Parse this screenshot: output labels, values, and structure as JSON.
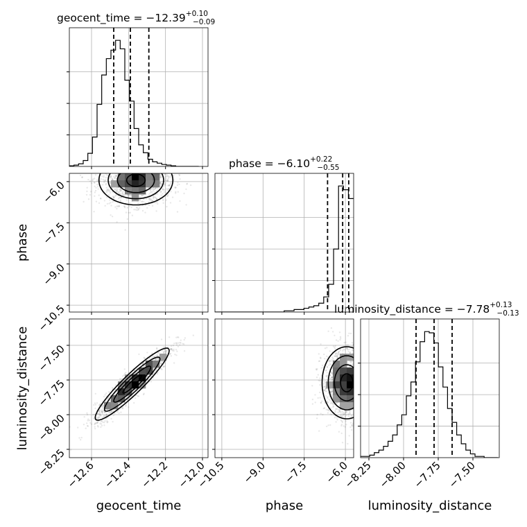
{
  "chart_data": {
    "type": "corner",
    "parameters": [
      "geocent_time",
      "phase",
      "luminosity_distance"
    ],
    "grid": true,
    "titles": [
      {
        "parameter": "geocent_time",
        "prefix": "geocent_time = −12.39",
        "plus": "+0.10",
        "minus": "−0.09",
        "median": -12.39,
        "err_plus": 0.1,
        "err_minus": 0.09
      },
      {
        "parameter": "phase",
        "prefix": "phase = −6.10",
        "plus": "+0.22",
        "minus": "−0.55",
        "median": -6.1,
        "err_plus": 0.22,
        "err_minus": 0.55
      },
      {
        "parameter": "luminosity_distance",
        "prefix": "luminosity_distance = −7.78",
        "plus": "+0.13",
        "minus": "−0.13",
        "median": -7.78,
        "err_plus": 0.13,
        "err_minus": 0.13
      }
    ],
    "ranges": {
      "geocent_time": [
        -12.72,
        -11.97
      ],
      "phase": [
        -10.75,
        -5.7
      ],
      "luminosity_distance": [
        -8.31,
        -7.31
      ]
    },
    "ticks": {
      "geocent_time": {
        "values": [
          -12.6,
          -12.4,
          -12.2,
          -12.0
        ],
        "labels": [
          "−12.6",
          "−12.4",
          "−12.2",
          "−12.0"
        ]
      },
      "phase": {
        "values": [
          -10.5,
          -9.0,
          -7.5,
          -6.0
        ],
        "labels": [
          "−10.5",
          "−9.0",
          "−7.5",
          "−6.0"
        ]
      },
      "luminosity_distance": {
        "values": [
          -8.25,
          -8.0,
          -7.75,
          -7.5
        ],
        "labels": [
          "−8.25",
          "−8.00",
          "−7.75",
          "−7.50"
        ]
      }
    },
    "quantile_lines": {
      "geocent_time": [
        -12.48,
        -12.39,
        -12.29
      ],
      "phase": [
        -6.65,
        -6.1,
        -5.88
      ],
      "luminosity_distance": [
        -7.91,
        -7.78,
        -7.65
      ]
    },
    "histograms": {
      "geocent_time": {
        "bin_edges": [
          -12.72,
          -12.695,
          -12.67,
          -12.645,
          -12.62,
          -12.595,
          -12.57,
          -12.545,
          -12.52,
          -12.495,
          -12.47,
          -12.445,
          -12.42,
          -12.395,
          -12.37,
          -12.345,
          -12.32,
          -12.295,
          -12.27,
          -12.245,
          -12.22,
          -12.195,
          -12.17,
          -12.145,
          -12.12,
          -12.095,
          -12.07,
          -12.045,
          -12.02
        ],
        "counts": [
          1,
          2,
          4,
          9,
          20,
          45,
          95,
          140,
          165,
          178,
          193,
          180,
          132,
          100,
          58,
          33,
          21,
          11,
          7,
          5,
          3,
          2,
          1,
          0,
          0,
          0,
          0,
          0
        ]
      },
      "phase": {
        "bin_edges": [
          -10.75,
          -10.57,
          -10.39,
          -10.21,
          -10.03,
          -9.85,
          -9.67,
          -9.49,
          -9.31,
          -9.13,
          -8.95,
          -8.77,
          -8.59,
          -8.41,
          -8.23,
          -8.05,
          -7.87,
          -7.69,
          -7.51,
          -7.33,
          -7.15,
          -6.97,
          -6.79,
          -6.61,
          -6.43,
          -6.25,
          -6.07,
          -5.89,
          -5.71
        ],
        "counts": [
          0,
          0,
          0,
          0,
          0,
          0,
          0,
          0,
          0,
          0,
          0,
          0,
          0,
          0,
          1,
          1,
          2,
          2,
          3,
          4,
          5,
          7,
          12,
          22,
          50,
          100,
          97,
          90
        ]
      },
      "luminosity_distance": {
        "bin_edges": [
          -8.31,
          -8.277,
          -8.244,
          -8.211,
          -8.178,
          -8.145,
          -8.112,
          -8.079,
          -8.046,
          -8.013,
          -7.98,
          -7.947,
          -7.914,
          -7.881,
          -7.848,
          -7.815,
          -7.782,
          -7.749,
          -7.716,
          -7.683,
          -7.65,
          -7.617,
          -7.584,
          -7.551,
          -7.518,
          -7.485,
          -7.452,
          -7.419,
          -7.386,
          -7.353,
          -7.32
        ],
        "counts": [
          1,
          1,
          2,
          4,
          6,
          9,
          13,
          18,
          26,
          34,
          49,
          60,
          76,
          92,
          100,
          99,
          91,
          72,
          56,
          39,
          28,
          18,
          11,
          6,
          3,
          1,
          1,
          0,
          0,
          0
        ]
      }
    },
    "pairs": [
      {
        "x": "geocent_time",
        "y": "phase",
        "center": [
          -12.36,
          -5.95
        ],
        "spread": [
          0.1,
          0.45
        ],
        "correlation": 0.0
      },
      {
        "x": "geocent_time",
        "y": "luminosity_distance",
        "center": [
          -12.38,
          -7.78
        ],
        "spread": [
          0.1,
          0.13
        ],
        "correlation": 0.93
      },
      {
        "x": "phase",
        "y": "luminosity_distance",
        "center": [
          -5.95,
          -7.77
        ],
        "spread": [
          0.45,
          0.13
        ],
        "correlation": 0.0
      }
    ]
  }
}
